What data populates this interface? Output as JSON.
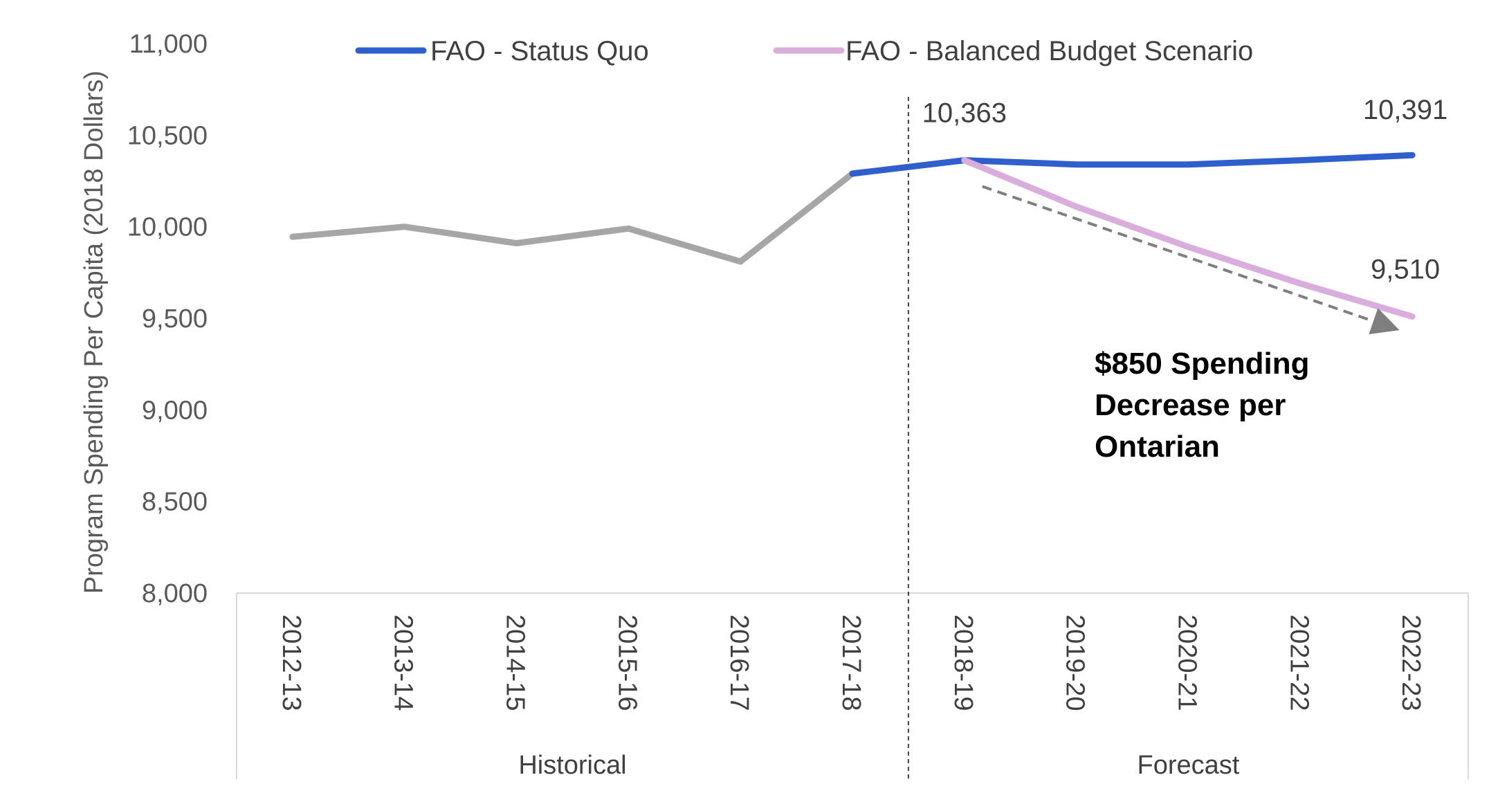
{
  "chart_data": {
    "type": "line",
    "categories": [
      "2012-13",
      "2013-14",
      "2014-15",
      "2015-16",
      "2016-17",
      "2017-18",
      "2018-19",
      "2019-20",
      "2020-21",
      "2021-22",
      "2022-23"
    ],
    "ylabel": "Program Spending Per Capita (2018 Dollars)",
    "ylim": [
      8000,
      11000
    ],
    "yticks": [
      8000,
      8500,
      9000,
      9500,
      10000,
      10500,
      11000
    ],
    "ytick_labels": [
      "8,000",
      "8,500",
      "9,000",
      "9,500",
      "10,000",
      "10,500",
      "11,000"
    ],
    "groups": [
      {
        "label": "Historical",
        "categories": [
          "2012-13",
          "2013-14",
          "2014-15",
          "2015-16",
          "2016-17",
          "2017-18"
        ]
      },
      {
        "label": "Forecast",
        "categories": [
          "2018-19",
          "2019-20",
          "2020-21",
          "2021-22",
          "2022-23"
        ]
      }
    ],
    "series": [
      {
        "values": [
          9945,
          10000,
          9910,
          9990,
          9810,
          10290,
          null,
          null,
          null,
          null,
          null
        ],
        "color": "#a6a6a6"
      },
      {
        "name": "FAO - Status Quo",
        "values": [
          null,
          null,
          null,
          null,
          null,
          10290,
          10363,
          10340,
          10340,
          10363,
          10391
        ],
        "color": "#2e5fcc"
      },
      {
        "name": "FAO - Balanced Budget Scenario",
        "values": [
          null,
          null,
          null,
          null,
          null,
          null,
          10363,
          10110,
          9890,
          9690,
          9510
        ],
        "color": "#d9aedd"
      }
    ],
    "data_labels": [
      {
        "text": "10,363",
        "category": "2018-19",
        "value": 10363
      },
      {
        "text": "10,391",
        "category": "2022-23",
        "value": 10391
      },
      {
        "text": "9,510",
        "category": "2022-23",
        "value": 9510
      }
    ],
    "annotation": {
      "lines": [
        "$850 Spending",
        "Decrease per",
        "Ontarian"
      ]
    },
    "trend_arrow": {
      "from": {
        "category": "2018-19",
        "value": 10220
      },
      "to": {
        "category": "2022-23",
        "value": 9445
      },
      "color": "#7f7f7f"
    },
    "divider_between": [
      "2017-18",
      "2018-19"
    ],
    "legend_position": "top",
    "grid": false
  }
}
